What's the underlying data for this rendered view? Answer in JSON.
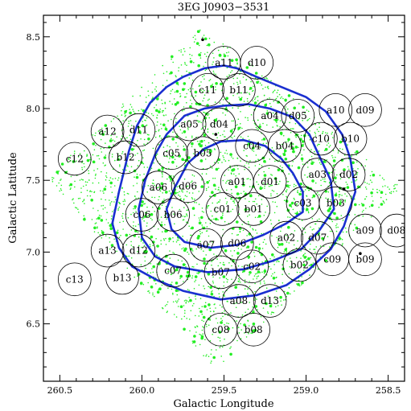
{
  "chart_data": {
    "type": "scatter",
    "title": "3EG J0903−3531",
    "xlabel": "Galactic Longitude",
    "ylabel": "Galactic Latitude",
    "xlim": [
      260.6,
      258.4
    ],
    "ylim": [
      6.1,
      8.65
    ],
    "x_reversed": true,
    "x_ticks": [
      260.5,
      260.0,
      259.5,
      259.0,
      258.5
    ],
    "x_tick_labels": [
      "260.5",
      "260.0",
      "259.5",
      "259.0",
      "258.5"
    ],
    "y_ticks": [
      6.5,
      7.0,
      7.5,
      8.0,
      8.5
    ],
    "y_tick_labels": [
      "6.5",
      "7.0",
      "7.5",
      "8.0",
      "8.5"
    ],
    "colors": {
      "contour": "#1a2fd0",
      "sources": "#22ee22",
      "circles": "#000000",
      "frame": "#000000"
    },
    "circle_radius_deg": 0.1,
    "fields": [
      {
        "label": "a11",
        "l": 259.5,
        "b": 8.32
      },
      {
        "label": "d10",
        "l": 259.3,
        "b": 8.32
      },
      {
        "label": "c11",
        "l": 259.6,
        "b": 8.13
      },
      {
        "label": "b11",
        "l": 259.41,
        "b": 8.13
      },
      {
        "label": "a10",
        "l": 258.82,
        "b": 7.99
      },
      {
        "label": "d09",
        "l": 258.64,
        "b": 7.99
      },
      {
        "label": "a12",
        "l": 260.21,
        "b": 7.84
      },
      {
        "label": "d11",
        "l": 260.02,
        "b": 7.85
      },
      {
        "label": "a05",
        "l": 259.71,
        "b": 7.89
      },
      {
        "label": "d04",
        "l": 259.53,
        "b": 7.89
      },
      {
        "label": "a04",
        "l": 259.22,
        "b": 7.95
      },
      {
        "label": "d05",
        "l": 259.05,
        "b": 7.95
      },
      {
        "label": "c12",
        "l": 260.41,
        "b": 7.65
      },
      {
        "label": "b12",
        "l": 260.1,
        "b": 7.66
      },
      {
        "label": "c05",
        "l": 259.82,
        "b": 7.69
      },
      {
        "label": "b05",
        "l": 259.63,
        "b": 7.69
      },
      {
        "label": "c04",
        "l": 259.33,
        "b": 7.74
      },
      {
        "label": "b04",
        "l": 259.13,
        "b": 7.74
      },
      {
        "label": "c10",
        "l": 258.91,
        "b": 7.79
      },
      {
        "label": "b10",
        "l": 258.73,
        "b": 7.79
      },
      {
        "label": "a06",
        "l": 259.9,
        "b": 7.45
      },
      {
        "label": "d06",
        "l": 259.72,
        "b": 7.46
      },
      {
        "label": "a01",
        "l": 259.42,
        "b": 7.49
      },
      {
        "label": "d01",
        "l": 259.22,
        "b": 7.49
      },
      {
        "label": "a03",
        "l": 258.93,
        "b": 7.54
      },
      {
        "label": "d02",
        "l": 258.74,
        "b": 7.54
      },
      {
        "label": "c06",
        "l": 260.0,
        "b": 7.26
      },
      {
        "label": "b06",
        "l": 259.81,
        "b": 7.26
      },
      {
        "label": "c01",
        "l": 259.51,
        "b": 7.3
      },
      {
        "label": "b01",
        "l": 259.32,
        "b": 7.3
      },
      {
        "label": "c03",
        "l": 259.02,
        "b": 7.34
      },
      {
        "label": "b03",
        "l": 258.82,
        "b": 7.34
      },
      {
        "label": "a09",
        "l": 258.64,
        "b": 7.15
      },
      {
        "label": "d08",
        "l": 258.45,
        "b": 7.15
      },
      {
        "label": "a13",
        "l": 260.21,
        "b": 7.01
      },
      {
        "label": "d12",
        "l": 260.02,
        "b": 7.01
      },
      {
        "label": "a07",
        "l": 259.61,
        "b": 7.05
      },
      {
        "label": "d06",
        "l": 259.42,
        "b": 7.06
      },
      {
        "label": "a02",
        "l": 259.12,
        "b": 7.1
      },
      {
        "label": "d07",
        "l": 258.93,
        "b": 7.1
      },
      {
        "label": "c07",
        "l": 259.81,
        "b": 6.87
      },
      {
        "label": "b07",
        "l": 259.52,
        "b": 6.86
      },
      {
        "label": "c02",
        "l": 259.33,
        "b": 6.9
      },
      {
        "label": "b02",
        "l": 259.04,
        "b": 6.91
      },
      {
        "label": "c09",
        "l": 258.84,
        "b": 6.95
      },
      {
        "label": "b09",
        "l": 258.64,
        "b": 6.95
      },
      {
        "label": "c13",
        "l": 260.41,
        "b": 6.81
      },
      {
        "label": "b13",
        "l": 260.12,
        "b": 6.82
      },
      {
        "label": "a08",
        "l": 259.41,
        "b": 6.66
      },
      {
        "label": "d13",
        "l": 259.22,
        "b": 6.66
      },
      {
        "label": "c08",
        "l": 259.52,
        "b": 6.46
      },
      {
        "label": "b08",
        "l": 259.32,
        "b": 6.46
      }
    ],
    "contours": [
      {
        "level": "outer",
        "points": [
          [
            259.5,
            8.3
          ],
          [
            259.62,
            8.28
          ],
          [
            259.75,
            8.22
          ],
          [
            259.85,
            8.15
          ],
          [
            259.95,
            8.04
          ],
          [
            260.03,
            7.88
          ],
          [
            260.08,
            7.7
          ],
          [
            260.14,
            7.42
          ],
          [
            260.18,
            7.2
          ],
          [
            260.14,
            7.03
          ],
          [
            260.06,
            6.9
          ],
          [
            259.9,
            6.8
          ],
          [
            259.75,
            6.73
          ],
          [
            259.52,
            6.67
          ],
          [
            259.3,
            6.7
          ],
          [
            259.12,
            6.77
          ],
          [
            258.98,
            6.88
          ],
          [
            258.85,
            7.02
          ],
          [
            258.77,
            7.18
          ],
          [
            258.7,
            7.42
          ],
          [
            258.73,
            7.65
          ],
          [
            258.78,
            7.82
          ],
          [
            258.88,
            7.98
          ],
          [
            259.0,
            8.08
          ],
          [
            259.15,
            8.15
          ],
          [
            259.3,
            8.22
          ],
          [
            259.42,
            8.28
          ],
          [
            259.5,
            8.3
          ]
        ]
      },
      {
        "level": "middle",
        "points": [
          [
            259.5,
            8.02
          ],
          [
            259.62,
            8.0
          ],
          [
            259.74,
            7.95
          ],
          [
            259.85,
            7.82
          ],
          [
            259.92,
            7.68
          ],
          [
            259.98,
            7.5
          ],
          [
            260.02,
            7.3
          ],
          [
            260.0,
            7.1
          ],
          [
            259.92,
            6.97
          ],
          [
            259.8,
            6.9
          ],
          [
            259.6,
            6.86
          ],
          [
            259.38,
            6.88
          ],
          [
            259.2,
            6.94
          ],
          [
            259.03,
            7.02
          ],
          [
            258.92,
            7.15
          ],
          [
            258.83,
            7.3
          ],
          [
            258.85,
            7.5
          ],
          [
            258.92,
            7.67
          ],
          [
            258.98,
            7.82
          ],
          [
            259.08,
            7.94
          ],
          [
            259.22,
            8.0
          ],
          [
            259.35,
            8.03
          ],
          [
            259.5,
            8.02
          ]
        ]
      },
      {
        "level": "inner",
        "points": [
          [
            259.38,
            7.78
          ],
          [
            259.52,
            7.77
          ],
          [
            259.62,
            7.72
          ],
          [
            259.72,
            7.62
          ],
          [
            259.8,
            7.45
          ],
          [
            259.85,
            7.3
          ],
          [
            259.82,
            7.16
          ],
          [
            259.74,
            7.07
          ],
          [
            259.58,
            7.03
          ],
          [
            259.42,
            7.05
          ],
          [
            259.26,
            7.12
          ],
          [
            259.12,
            7.2
          ],
          [
            259.02,
            7.28
          ],
          [
            259.02,
            7.42
          ],
          [
            259.08,
            7.55
          ],
          [
            259.15,
            7.65
          ],
          [
            259.25,
            7.74
          ],
          [
            259.38,
            7.78
          ]
        ]
      }
    ],
    "dark_markers": [
      [
        259.63,
        8.48
      ],
      [
        259.55,
        7.82
      ],
      [
        258.77,
        7.44
      ],
      [
        258.67,
        6.99
      ]
    ]
  }
}
